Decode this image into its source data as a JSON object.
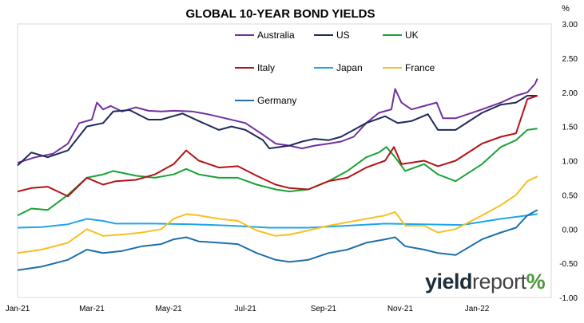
{
  "chart_data": {
    "type": "line",
    "title": "GLOBAL 10-YEAR BOND YIELDS",
    "ylabel": "%",
    "y_axis_side": "right",
    "ylim": [
      -1.0,
      3.0
    ],
    "yticks": [
      "3.00",
      "2.50",
      "2.00",
      "1.50",
      "1.00",
      "0.50",
      "0.00",
      "-0.50",
      "-1.00"
    ],
    "xlim": [
      "2021-01-01",
      "2022-03-01"
    ],
    "xticks": [
      "Jan-21",
      "Mar-21",
      "May-21",
      "Jul-21",
      "Sep-21",
      "Nov-21",
      "Jan-22"
    ],
    "xtick_dates": [
      "2021-01-01",
      "2021-03-01",
      "2021-05-01",
      "2021-07-01",
      "2021-09-01",
      "2021-11-01",
      "2022-01-01"
    ],
    "grid": "none",
    "legend_position": "top, inside plot",
    "series": [
      {
        "name": "Australia",
        "color": "#7030a0",
        "points": [
          [
            "2021-01-01",
            0.97
          ],
          [
            "2021-01-15",
            1.05
          ],
          [
            "2021-01-29",
            1.1
          ],
          [
            "2021-02-10",
            1.25
          ],
          [
            "2021-02-19",
            1.55
          ],
          [
            "2021-03-01",
            1.6
          ],
          [
            "2021-03-05",
            1.85
          ],
          [
            "2021-03-10",
            1.75
          ],
          [
            "2021-03-16",
            1.8
          ],
          [
            "2021-03-25",
            1.72
          ],
          [
            "2021-04-05",
            1.78
          ],
          [
            "2021-04-15",
            1.73
          ],
          [
            "2021-04-25",
            1.72
          ],
          [
            "2021-05-05",
            1.73
          ],
          [
            "2021-05-20",
            1.72
          ],
          [
            "2021-06-01",
            1.68
          ],
          [
            "2021-06-15",
            1.62
          ],
          [
            "2021-07-01",
            1.55
          ],
          [
            "2021-07-15",
            1.38
          ],
          [
            "2021-07-25",
            1.25
          ],
          [
            "2021-08-05",
            1.22
          ],
          [
            "2021-08-15",
            1.18
          ],
          [
            "2021-08-25",
            1.22
          ],
          [
            "2021-09-05",
            1.25
          ],
          [
            "2021-09-15",
            1.28
          ],
          [
            "2021-09-25",
            1.35
          ],
          [
            "2021-10-05",
            1.55
          ],
          [
            "2021-10-15",
            1.7
          ],
          [
            "2021-10-25",
            1.75
          ],
          [
            "2021-10-28",
            2.05
          ],
          [
            "2021-11-02",
            1.85
          ],
          [
            "2021-11-10",
            1.75
          ],
          [
            "2021-11-20",
            1.8
          ],
          [
            "2021-11-30",
            1.85
          ],
          [
            "2021-12-05",
            1.62
          ],
          [
            "2021-12-15",
            1.62
          ],
          [
            "2022-01-05",
            1.75
          ],
          [
            "2022-01-20",
            1.85
          ],
          [
            "2022-02-01",
            1.95
          ],
          [
            "2022-02-10",
            2.0
          ],
          [
            "2022-02-16",
            2.12
          ],
          [
            "2022-02-18",
            2.2
          ]
        ]
      },
      {
        "name": "US",
        "color": "#1f2a5c",
        "points": [
          [
            "2021-01-01",
            0.93
          ],
          [
            "2021-01-12",
            1.12
          ],
          [
            "2021-01-25",
            1.05
          ],
          [
            "2021-02-10",
            1.15
          ],
          [
            "2021-02-25",
            1.5
          ],
          [
            "2021-03-10",
            1.55
          ],
          [
            "2021-03-18",
            1.72
          ],
          [
            "2021-03-31",
            1.74
          ],
          [
            "2021-04-15",
            1.6
          ],
          [
            "2021-04-25",
            1.6
          ],
          [
            "2021-05-12",
            1.69
          ],
          [
            "2021-05-25",
            1.58
          ],
          [
            "2021-06-10",
            1.45
          ],
          [
            "2021-06-20",
            1.5
          ],
          [
            "2021-07-01",
            1.45
          ],
          [
            "2021-07-15",
            1.3
          ],
          [
            "2021-07-20",
            1.18
          ],
          [
            "2021-08-05",
            1.22
          ],
          [
            "2021-08-15",
            1.28
          ],
          [
            "2021-08-25",
            1.32
          ],
          [
            "2021-09-05",
            1.3
          ],
          [
            "2021-09-15",
            1.35
          ],
          [
            "2021-09-25",
            1.45
          ],
          [
            "2021-10-05",
            1.55
          ],
          [
            "2021-10-20",
            1.65
          ],
          [
            "2021-10-30",
            1.55
          ],
          [
            "2021-11-10",
            1.58
          ],
          [
            "2021-11-23",
            1.68
          ],
          [
            "2021-12-01",
            1.45
          ],
          [
            "2021-12-15",
            1.45
          ],
          [
            "2022-01-05",
            1.7
          ],
          [
            "2022-01-20",
            1.82
          ],
          [
            "2022-02-01",
            1.85
          ],
          [
            "2022-02-10",
            1.95
          ],
          [
            "2022-02-18",
            1.95
          ]
        ]
      },
      {
        "name": "UK",
        "color": "#19a336",
        "points": [
          [
            "2021-01-01",
            0.2
          ],
          [
            "2021-01-12",
            0.3
          ],
          [
            "2021-01-25",
            0.28
          ],
          [
            "2021-02-10",
            0.5
          ],
          [
            "2021-02-25",
            0.75
          ],
          [
            "2021-03-10",
            0.8
          ],
          [
            "2021-03-18",
            0.85
          ],
          [
            "2021-04-05",
            0.78
          ],
          [
            "2021-04-20",
            0.75
          ],
          [
            "2021-05-05",
            0.8
          ],
          [
            "2021-05-15",
            0.88
          ],
          [
            "2021-05-25",
            0.8
          ],
          [
            "2021-06-10",
            0.75
          ],
          [
            "2021-06-25",
            0.75
          ],
          [
            "2021-07-10",
            0.65
          ],
          [
            "2021-07-25",
            0.58
          ],
          [
            "2021-08-05",
            0.55
          ],
          [
            "2021-08-20",
            0.58
          ],
          [
            "2021-09-05",
            0.7
          ],
          [
            "2021-09-20",
            0.85
          ],
          [
            "2021-10-05",
            1.05
          ],
          [
            "2021-10-15",
            1.12
          ],
          [
            "2021-10-21",
            1.2
          ],
          [
            "2021-10-28",
            1.05
          ],
          [
            "2021-11-05",
            0.85
          ],
          [
            "2021-11-20",
            0.95
          ],
          [
            "2021-12-01",
            0.8
          ],
          [
            "2021-12-15",
            0.7
          ],
          [
            "2022-01-05",
            0.95
          ],
          [
            "2022-01-20",
            1.2
          ],
          [
            "2022-02-01",
            1.3
          ],
          [
            "2022-02-10",
            1.45
          ],
          [
            "2022-02-18",
            1.47
          ]
        ]
      },
      {
        "name": "Italy",
        "color": "#b31216",
        "points": [
          [
            "2021-01-01",
            0.55
          ],
          [
            "2021-01-12",
            0.6
          ],
          [
            "2021-01-25",
            0.62
          ],
          [
            "2021-02-10",
            0.48
          ],
          [
            "2021-02-25",
            0.75
          ],
          [
            "2021-03-10",
            0.65
          ],
          [
            "2021-03-20",
            0.7
          ],
          [
            "2021-04-05",
            0.72
          ],
          [
            "2021-04-20",
            0.8
          ],
          [
            "2021-05-05",
            0.95
          ],
          [
            "2021-05-15",
            1.15
          ],
          [
            "2021-05-25",
            1.0
          ],
          [
            "2021-06-10",
            0.9
          ],
          [
            "2021-06-25",
            0.92
          ],
          [
            "2021-07-10",
            0.78
          ],
          [
            "2021-07-25",
            0.65
          ],
          [
            "2021-08-05",
            0.6
          ],
          [
            "2021-08-20",
            0.58
          ],
          [
            "2021-09-05",
            0.7
          ],
          [
            "2021-09-20",
            0.75
          ],
          [
            "2021-10-05",
            0.9
          ],
          [
            "2021-10-20",
            1.0
          ],
          [
            "2021-10-27",
            1.2
          ],
          [
            "2021-11-02",
            0.95
          ],
          [
            "2021-11-20",
            1.0
          ],
          [
            "2021-12-01",
            0.92
          ],
          [
            "2021-12-15",
            1.0
          ],
          [
            "2022-01-05",
            1.25
          ],
          [
            "2022-01-20",
            1.35
          ],
          [
            "2022-02-01",
            1.4
          ],
          [
            "2022-02-10",
            1.9
          ],
          [
            "2022-02-18",
            1.95
          ]
        ]
      },
      {
        "name": "Japan",
        "color": "#1ca6e8",
        "points": [
          [
            "2021-01-01",
            0.02
          ],
          [
            "2021-01-20",
            0.03
          ],
          [
            "2021-02-10",
            0.07
          ],
          [
            "2021-02-25",
            0.15
          ],
          [
            "2021-03-10",
            0.12
          ],
          [
            "2021-03-20",
            0.08
          ],
          [
            "2021-04-20",
            0.08
          ],
          [
            "2021-05-20",
            0.07
          ],
          [
            "2021-06-20",
            0.05
          ],
          [
            "2021-07-20",
            0.02
          ],
          [
            "2021-08-20",
            0.02
          ],
          [
            "2021-09-20",
            0.05
          ],
          [
            "2021-10-20",
            0.08
          ],
          [
            "2021-11-20",
            0.07
          ],
          [
            "2021-12-20",
            0.06
          ],
          [
            "2022-01-20",
            0.15
          ],
          [
            "2022-02-10",
            0.2
          ],
          [
            "2022-02-18",
            0.22
          ]
        ]
      },
      {
        "name": "France",
        "color": "#f7c01f",
        "points": [
          [
            "2021-01-01",
            -0.35
          ],
          [
            "2021-01-20",
            -0.3
          ],
          [
            "2021-02-10",
            -0.2
          ],
          [
            "2021-02-25",
            0.0
          ],
          [
            "2021-03-10",
            -0.1
          ],
          [
            "2021-03-25",
            -0.08
          ],
          [
            "2021-04-10",
            -0.05
          ],
          [
            "2021-04-25",
            0.0
          ],
          [
            "2021-05-05",
            0.15
          ],
          [
            "2021-05-15",
            0.22
          ],
          [
            "2021-05-25",
            0.2
          ],
          [
            "2021-06-10",
            0.15
          ],
          [
            "2021-06-25",
            0.12
          ],
          [
            "2021-07-10",
            -0.02
          ],
          [
            "2021-07-25",
            -0.1
          ],
          [
            "2021-08-05",
            -0.08
          ],
          [
            "2021-08-20",
            -0.02
          ],
          [
            "2021-09-05",
            0.05
          ],
          [
            "2021-09-20",
            0.1
          ],
          [
            "2021-10-05",
            0.15
          ],
          [
            "2021-10-20",
            0.2
          ],
          [
            "2021-10-28",
            0.25
          ],
          [
            "2021-11-05",
            0.05
          ],
          [
            "2021-11-20",
            0.05
          ],
          [
            "2021-12-01",
            -0.05
          ],
          [
            "2021-12-15",
            0.0
          ],
          [
            "2022-01-05",
            0.2
          ],
          [
            "2022-01-20",
            0.35
          ],
          [
            "2022-02-01",
            0.5
          ],
          [
            "2022-02-10",
            0.7
          ],
          [
            "2022-02-18",
            0.77
          ]
        ]
      },
      {
        "name": "Germany",
        "color": "#1f6fa8",
        "points": [
          [
            "2021-01-01",
            -0.6
          ],
          [
            "2021-01-20",
            -0.55
          ],
          [
            "2021-02-10",
            -0.45
          ],
          [
            "2021-02-25",
            -0.3
          ],
          [
            "2021-03-10",
            -0.35
          ],
          [
            "2021-03-25",
            -0.32
          ],
          [
            "2021-04-10",
            -0.25
          ],
          [
            "2021-04-25",
            -0.22
          ],
          [
            "2021-05-05",
            -0.15
          ],
          [
            "2021-05-15",
            -0.12
          ],
          [
            "2021-05-25",
            -0.18
          ],
          [
            "2021-06-10",
            -0.2
          ],
          [
            "2021-06-25",
            -0.22
          ],
          [
            "2021-07-10",
            -0.35
          ],
          [
            "2021-07-25",
            -0.45
          ],
          [
            "2021-08-05",
            -0.48
          ],
          [
            "2021-08-20",
            -0.45
          ],
          [
            "2021-09-05",
            -0.35
          ],
          [
            "2021-09-20",
            -0.3
          ],
          [
            "2021-10-05",
            -0.2
          ],
          [
            "2021-10-20",
            -0.15
          ],
          [
            "2021-10-28",
            -0.12
          ],
          [
            "2021-11-05",
            -0.25
          ],
          [
            "2021-11-20",
            -0.3
          ],
          [
            "2021-12-01",
            -0.35
          ],
          [
            "2021-12-15",
            -0.38
          ],
          [
            "2022-01-05",
            -0.15
          ],
          [
            "2022-01-20",
            -0.05
          ],
          [
            "2022-02-01",
            0.02
          ],
          [
            "2022-02-10",
            0.2
          ],
          [
            "2022-02-18",
            0.28
          ]
        ]
      }
    ]
  },
  "brand": {
    "yield": "yield",
    "report": "report",
    "pct": "%"
  }
}
